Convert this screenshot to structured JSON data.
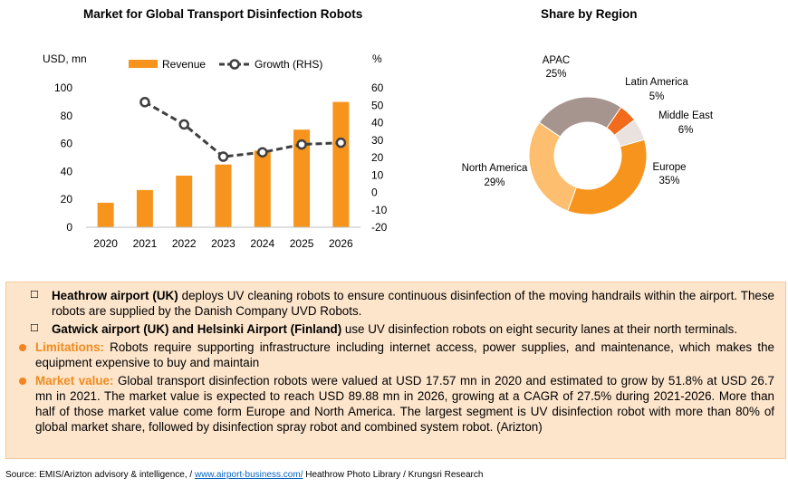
{
  "bar_chart_title": "Market for Global Transport Disinfection Robots",
  "pie_chart_title": "Share by Region",
  "chart_data": [
    {
      "type": "bar",
      "title": "Market for Global Transport Disinfection Robots",
      "categories": [
        "2020",
        "2021",
        "2022",
        "2023",
        "2024",
        "2025",
        "2026"
      ],
      "ylabel": "USD, mn",
      "y2label": "%",
      "ylim": [
        0,
        100
      ],
      "yticks": [
        "0",
        "20",
        "40",
        "60",
        "80",
        "100"
      ],
      "y2lim": [
        -20,
        60
      ],
      "y2ticks": [
        "-20",
        "-10",
        "0",
        "10",
        "20",
        "30",
        "40",
        "50",
        "60"
      ],
      "series": [
        {
          "name": "Revenue",
          "type": "bar",
          "axis": "left",
          "color": "#f7941d",
          "values": [
            17.57,
            26.7,
            37,
            45,
            55,
            70,
            89.88
          ]
        },
        {
          "name": "Growth (RHS)",
          "type": "line",
          "axis": "right",
          "color": "#3f3f3f",
          "values": [
            null,
            51.8,
            39,
            20.5,
            23,
            27.5,
            28.5
          ]
        }
      ],
      "legend": "top",
      "grid": false
    },
    {
      "type": "pie",
      "title": "Share by Region",
      "donut": true,
      "slices": [
        {
          "label": "Europe",
          "value": 35,
          "text": "35%",
          "color": "#f7941d"
        },
        {
          "label": "North America",
          "value": 29,
          "text": "29%",
          "color": "#fdbf6f"
        },
        {
          "label": "APAC",
          "value": 25,
          "text": "25%",
          "color": "#a6958e"
        },
        {
          "label": "Latin America",
          "value": 5,
          "text": "5%",
          "color": "#f26a1b"
        },
        {
          "label": "Middle East",
          "value": 6,
          "text": "6%",
          "color": "#e9e2df"
        }
      ]
    }
  ],
  "notes": {
    "heathrow_bold": "Heathrow airport (UK)",
    "heathrow_text": " deploys UV cleaning robots to ensure continuous disinfection of the moving handrails within the airport. These robots are supplied by the Danish Company UVD Robots.",
    "gatwick_bold": "Gatwick airport (UK) and Helsinki Airport (Finland)",
    "gatwick_text": " use UV disinfection robots on eight security lanes at their north terminals.",
    "limitations_label": "Limitations:",
    "limitations_text": " Robots require supporting infrastructure including internet access, power supplies, and maintenance, which makes the equipment expensive to buy and maintain",
    "market_label": "Market value:",
    "market_text": " Global transport disinfection robots were valued at USD 17.57 mn in 2020 and estimated to grow by 51.8% at USD 26.7 mn in 2021. The market value is expected to reach USD 89.88 mn in 2026, growing at a CAGR of 27.5% during 2021-2026. More than half of those market value come form Europe and North America. The largest segment is UV disinfection robot with more than 80% of global market share, followed by disinfection spray robot and combined system robot.  (Arizton)"
  },
  "source": {
    "prefix": "Source: EMIS/Arizton advisory & intelligence, / ",
    "link": "www.airport-business.com/",
    "suffix": " Heathrow Photo Library /  Krungsri Research"
  }
}
